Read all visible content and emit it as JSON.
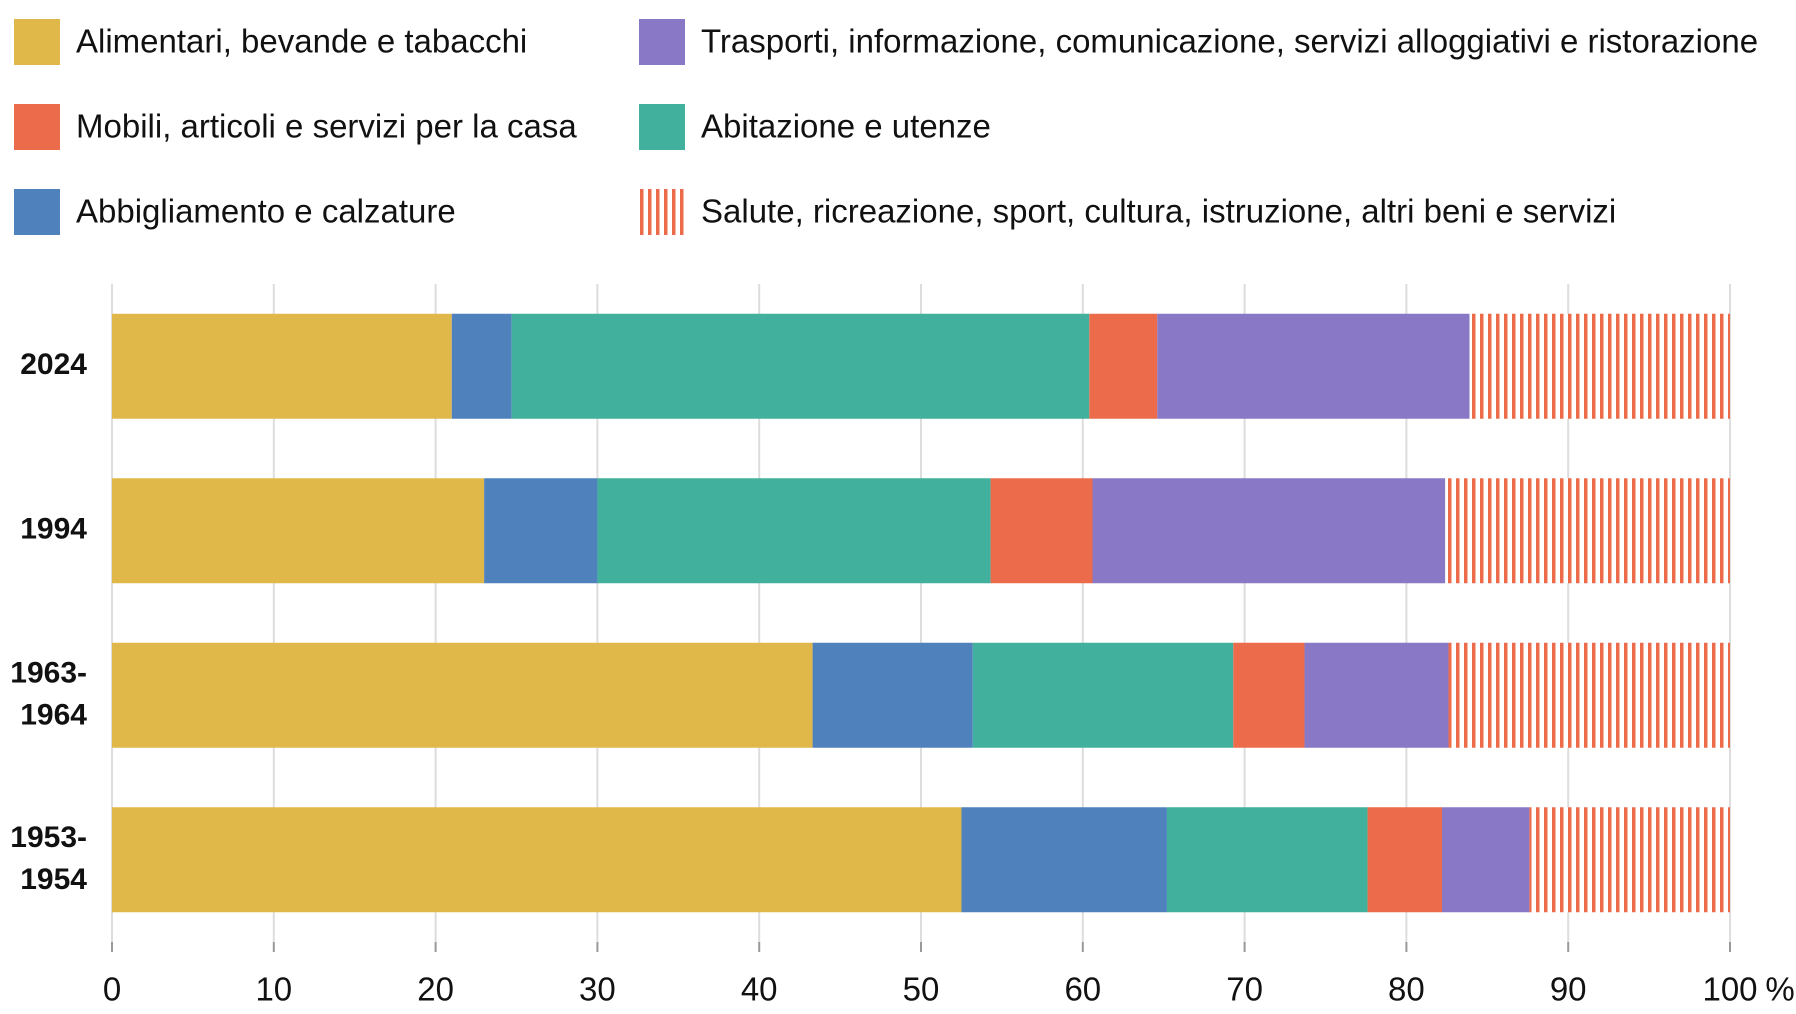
{
  "chart_data": {
    "type": "stacked-barh",
    "categories": [
      "2024",
      "1994",
      "1963-1964",
      "1953-1954"
    ],
    "series": [
      {
        "name": "Alimentari, bevande e tabacchi",
        "color": "#e0b84a",
        "values": [
          21.0,
          23.0,
          43.3,
          52.5
        ]
      },
      {
        "name": "Abbigliamento e calzature",
        "color": "#4f81bd",
        "values": [
          3.7,
          7.0,
          9.9,
          12.7
        ]
      },
      {
        "name": "Abitazione e utenze",
        "color": "#41b09c",
        "values": [
          35.7,
          24.3,
          16.1,
          12.4
        ]
      },
      {
        "name": "Mobili, articoli e servizi per la casa",
        "color": "#ec6b4b",
        "values": [
          4.2,
          6.3,
          4.4,
          4.6
        ]
      },
      {
        "name": "Trasporti, informazione, comunicazione, servizi alloggiativi e ristorazione",
        "color": "#8878c6",
        "values": [
          19.3,
          21.8,
          8.9,
          5.4
        ]
      },
      {
        "name": "Salute, ricreazione, sport, cultura, istruzione, altri beni e servizi",
        "color": "#ec6b4b",
        "pattern": "vertical-stripes",
        "values": [
          16.1,
          17.6,
          17.4,
          12.4
        ]
      }
    ],
    "x_label": "%",
    "xlim": [
      0,
      100
    ],
    "xticks": [
      0,
      10,
      20,
      30,
      40,
      50,
      60,
      70,
      80,
      90,
      100
    ],
    "grid": true
  }
}
